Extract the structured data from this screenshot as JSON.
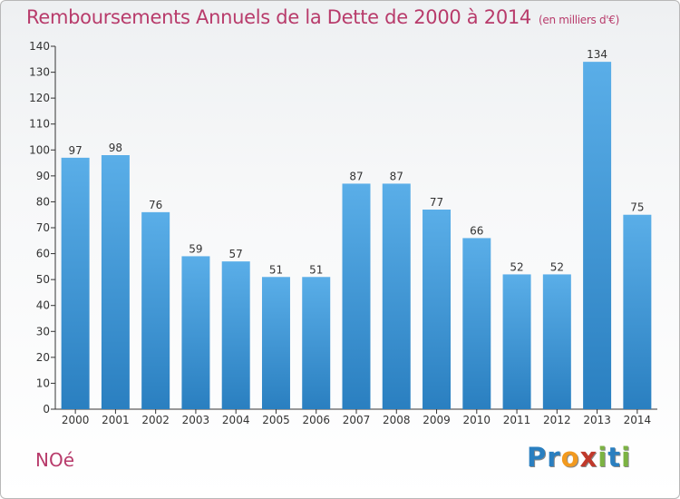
{
  "chart_data": {
    "type": "bar",
    "title": "Remboursements Annuels de la Dette de 2000 à 2014",
    "unit_note": "(en milliers d'€)",
    "categories": [
      "2000",
      "2001",
      "2002",
      "2003",
      "2004",
      "2005",
      "2006",
      "2007",
      "2008",
      "2009",
      "2010",
      "2011",
      "2012",
      "2013",
      "2014"
    ],
    "values": [
      97,
      98,
      76,
      59,
      57,
      51,
      51,
      87,
      87,
      77,
      66,
      52,
      52,
      134,
      75
    ],
    "ylim": [
      0,
      140
    ],
    "yticks": [
      0,
      10,
      20,
      30,
      40,
      50,
      60,
      70,
      80,
      90,
      100,
      110,
      120,
      130,
      140
    ],
    "xlabel": "",
    "ylabel": "",
    "grid": false,
    "bar_color_top": "#5aaee8",
    "bar_color_bottom": "#2a7fc0"
  },
  "commune": "NOé",
  "logo": {
    "letters": [
      "P",
      "r",
      "o",
      "x",
      "i",
      "t",
      "i"
    ],
    "colors": [
      "#2a7fc0",
      "#2a7fc0",
      "#f29a1f",
      "#c0392b",
      "#7cb342",
      "#2a7fc0",
      "#7cb342"
    ]
  },
  "colors": {
    "accent": "#b83b6b",
    "axis": "#333333"
  }
}
